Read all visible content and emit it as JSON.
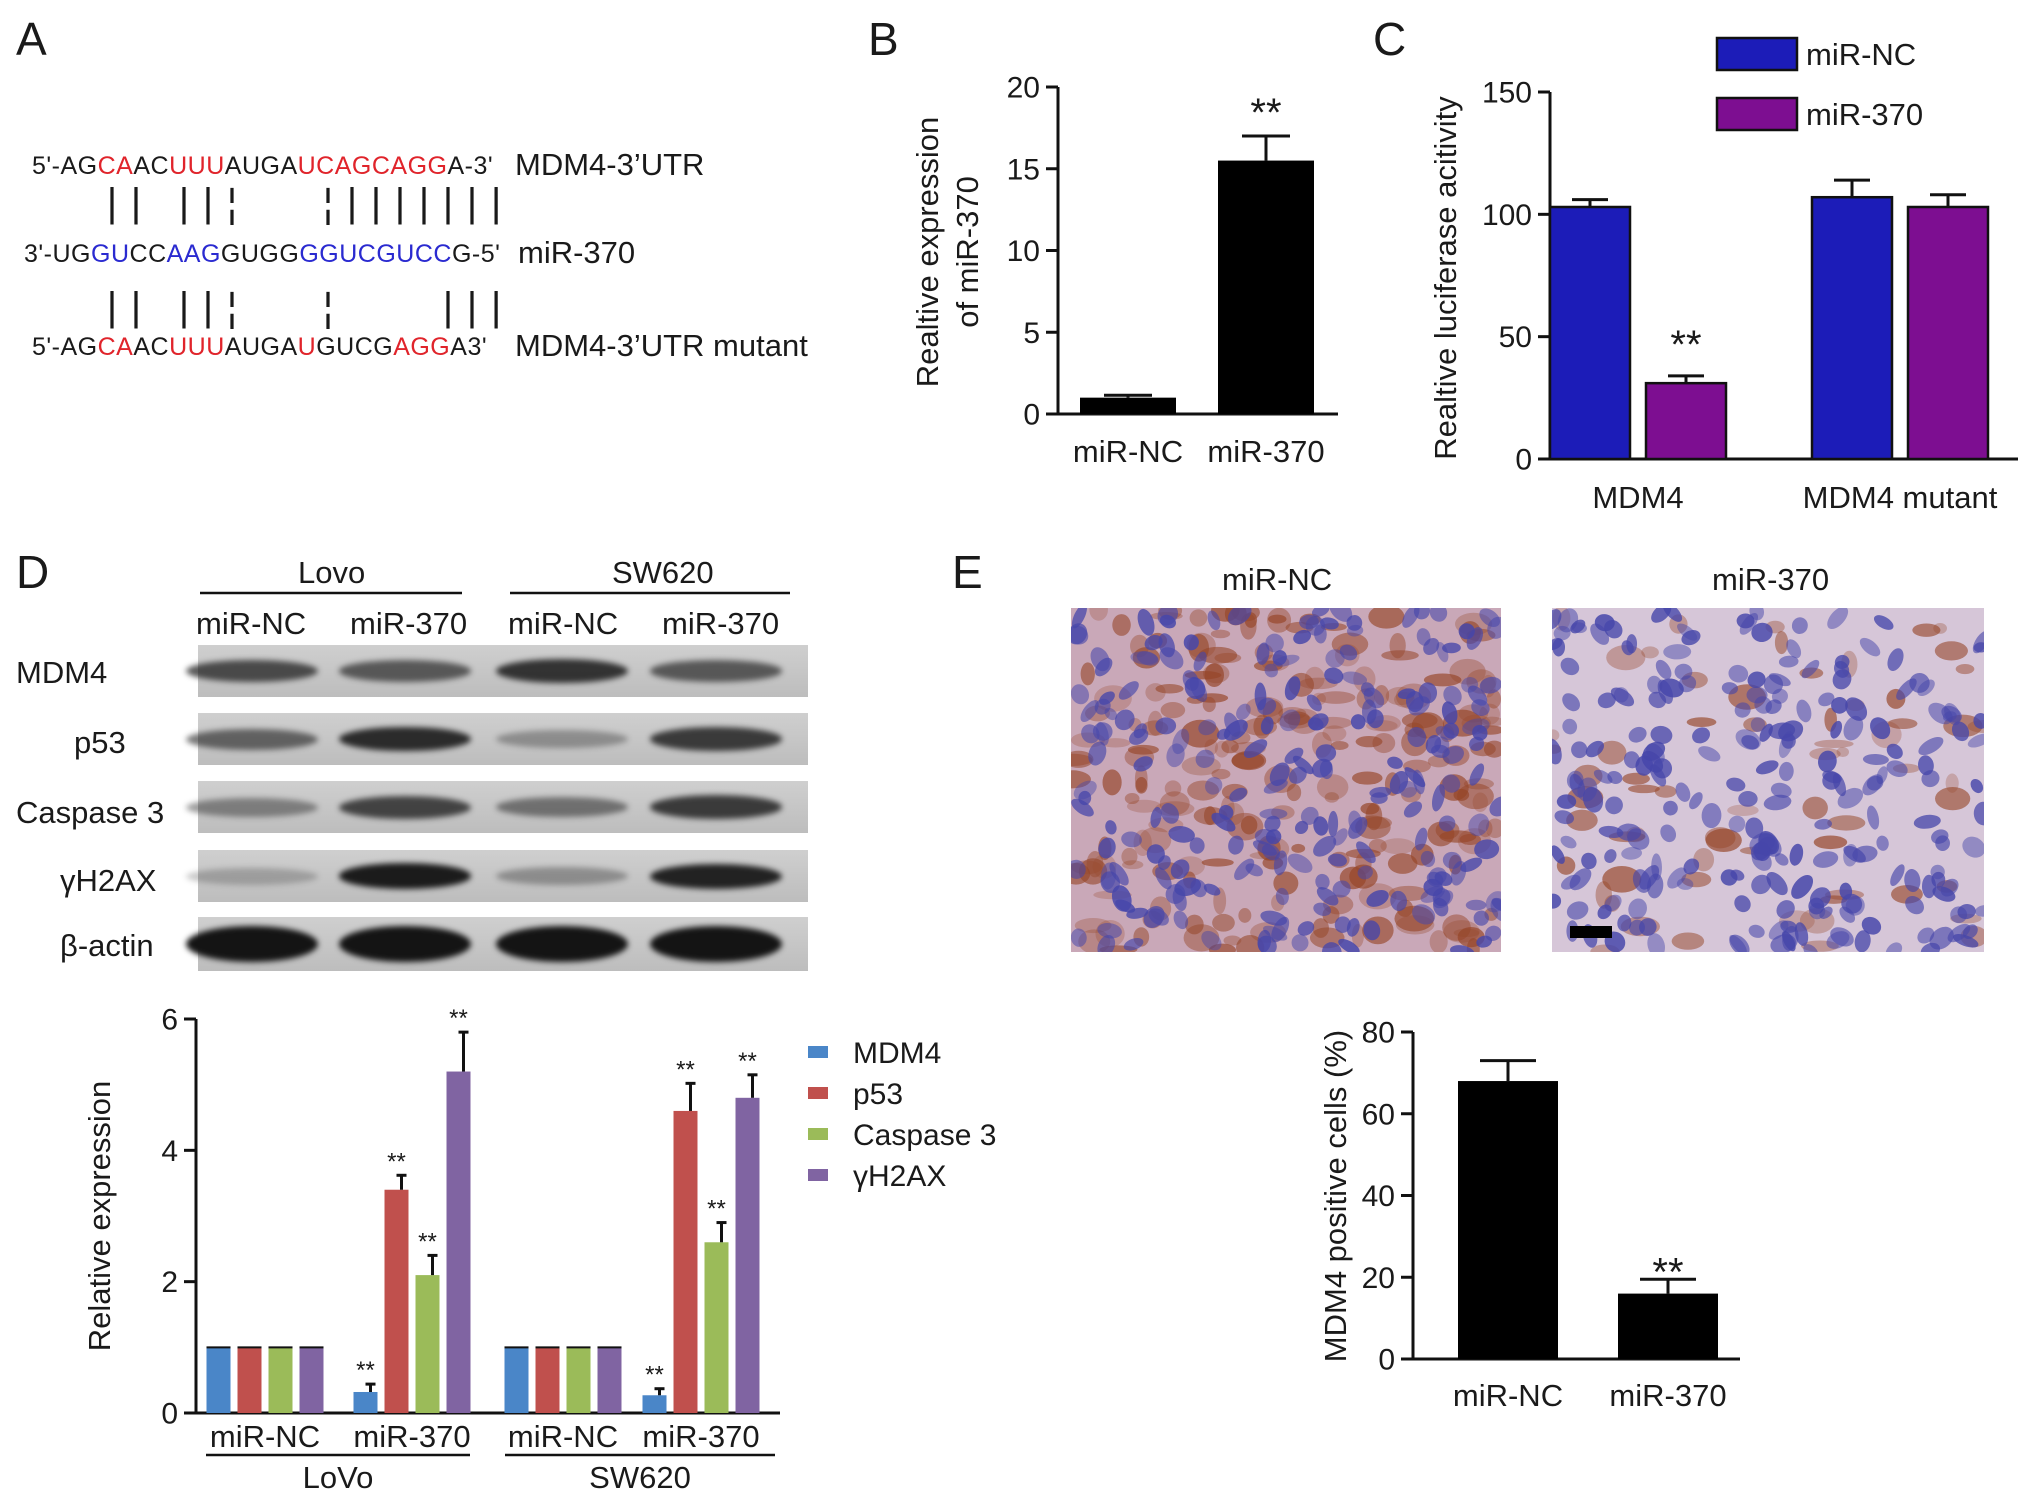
{
  "panels": {
    "a": "A",
    "b": "B",
    "c": "C",
    "d": "D",
    "e": "E"
  },
  "sequence_alignment": {
    "rows": [
      {
        "segments": [
          {
            "t": "5'-AG",
            "c": "k"
          },
          {
            "t": "CA",
            "c": "r"
          },
          {
            "t": "AC",
            "c": "k"
          },
          {
            "t": "UUU",
            "c": "r"
          },
          {
            "t": "AUGA",
            "c": "k"
          },
          {
            "t": "UCAGCAGG",
            "c": "r"
          },
          {
            "t": "A-3'",
            "c": "k"
          }
        ],
        "label": "MDM4-3’UTR"
      },
      {
        "segments": [
          {
            "t": "3'-UG",
            "c": "k"
          },
          {
            "t": "GU",
            "c": "b"
          },
          {
            "t": "CC",
            "c": "k"
          },
          {
            "t": "AAG",
            "c": "b"
          },
          {
            "t": "GUGG",
            "c": "k"
          },
          {
            "t": "GGUCGUCC",
            "c": "b"
          },
          {
            "t": "G-5'",
            "c": "k"
          }
        ],
        "label": "miR-370"
      },
      {
        "segments": [
          {
            "t": "5'-AG",
            "c": "k"
          },
          {
            "t": "CA",
            "c": "r"
          },
          {
            "t": "AC",
            "c": "k"
          },
          {
            "t": "UUU",
            "c": "r"
          },
          {
            "t": "AUGA",
            "c": "k"
          },
          {
            "t": "U",
            "c": "r"
          },
          {
            "t": "GUCG",
            "c": "k"
          },
          {
            "t": "AGG",
            "c": "r"
          },
          {
            "t": "A3'",
            "c": "k"
          }
        ],
        "label": "MDM4-3’UTR mutant"
      }
    ]
  },
  "blot": {
    "groups": [
      "Lovo",
      "SW620"
    ],
    "lanes": [
      "miR-NC",
      "miR-370",
      "miR-NC",
      "miR-370"
    ],
    "rows": [
      "MDM4",
      "p53",
      "Caspase 3",
      "γH2AX",
      "β-actin"
    ],
    "band_intensity": [
      [
        0.65,
        0.55,
        0.8,
        0.55
      ],
      [
        0.5,
        0.85,
        0.2,
        0.75
      ],
      [
        0.3,
        0.7,
        0.4,
        0.75
      ],
      [
        0.1,
        0.95,
        0.2,
        0.9
      ],
      [
        1.0,
        1.0,
        1.0,
        1.0
      ]
    ]
  },
  "micrographs": {
    "labels": [
      "miR-NC",
      "miR-370"
    ],
    "brown_staining": [
      0.85,
      0.25
    ]
  },
  "colors": {
    "black_bar": "#000000",
    "miR_NC": "#1c1cb8",
    "miR_370": "#7d0e91",
    "MDM4": "#4a86c8",
    "p53": "#c0504d",
    "Caspase3": "#9bbb59",
    "gH2AX": "#8064a2"
  },
  "chart_data": [
    {
      "panel": "B",
      "type": "bar",
      "categories": [
        "miR-NC",
        "miR-370"
      ],
      "values": [
        1.0,
        15.5
      ],
      "errors": [
        0.15,
        1.5
      ],
      "annotations": [
        "",
        "**"
      ],
      "ylabel_line1": "Realtive expression",
      "ylabel_line2": "of miR-370",
      "ylim": [
        0,
        20
      ],
      "yticks": [
        0,
        5,
        10,
        15,
        20
      ]
    },
    {
      "panel": "C",
      "type": "bar",
      "categories": [
        "MDM4",
        "MDM4 mutant"
      ],
      "series": [
        {
          "name": "miR-NC",
          "values": [
            103,
            107
          ],
          "errors": [
            3,
            7
          ]
        },
        {
          "name": "miR-370",
          "values": [
            31,
            103
          ],
          "errors": [
            3,
            5
          ]
        }
      ],
      "annotations": [
        [
          "",
          "**"
        ],
        [
          "",
          ""
        ]
      ],
      "ylabel": "Realtive luciferase acitivity",
      "ylim": [
        0,
        150
      ],
      "yticks": [
        0,
        50,
        100,
        150
      ],
      "legend": "top-right"
    },
    {
      "panel": "D",
      "type": "bar",
      "categories": [
        "miR-NC",
        "miR-370",
        "miR-NC",
        "miR-370"
      ],
      "groups": [
        "LoVo",
        "SW620"
      ],
      "series": [
        {
          "name": "MDM4",
          "values": [
            1,
            0.32,
            1,
            0.27
          ],
          "errors": [
            0,
            0.12,
            0,
            0.1
          ]
        },
        {
          "name": "p53",
          "values": [
            1,
            3.4,
            1,
            4.6
          ],
          "errors": [
            0,
            0.22,
            0,
            0.42
          ]
        },
        {
          "name": "Caspase 3",
          "values": [
            1,
            2.1,
            1,
            2.6
          ],
          "errors": [
            0,
            0.3,
            0,
            0.3
          ]
        },
        {
          "name": "γH2AX",
          "values": [
            1,
            5.2,
            1,
            4.8
          ],
          "errors": [
            0,
            0.6,
            0,
            0.35
          ]
        }
      ],
      "annotations": [
        [
          "",
          "**",
          "",
          "**"
        ],
        [
          "",
          "**",
          "",
          "**"
        ],
        [
          "",
          "**",
          "",
          "**"
        ],
        [
          "",
          "**",
          "",
          "**"
        ]
      ],
      "ylabel": "Relative expression",
      "ylim": [
        0,
        6
      ],
      "yticks": [
        0,
        2,
        4,
        6
      ],
      "legend": "right"
    },
    {
      "panel": "E",
      "type": "bar",
      "categories": [
        "miR-NC",
        "miR-370"
      ],
      "values": [
        68,
        16
      ],
      "errors": [
        5,
        3.5
      ],
      "annotations": [
        "",
        "**"
      ],
      "ylabel": "MDM4 positive cells (%)",
      "ylim": [
        0,
        80
      ],
      "yticks": [
        0,
        20,
        40,
        60,
        80
      ]
    }
  ]
}
